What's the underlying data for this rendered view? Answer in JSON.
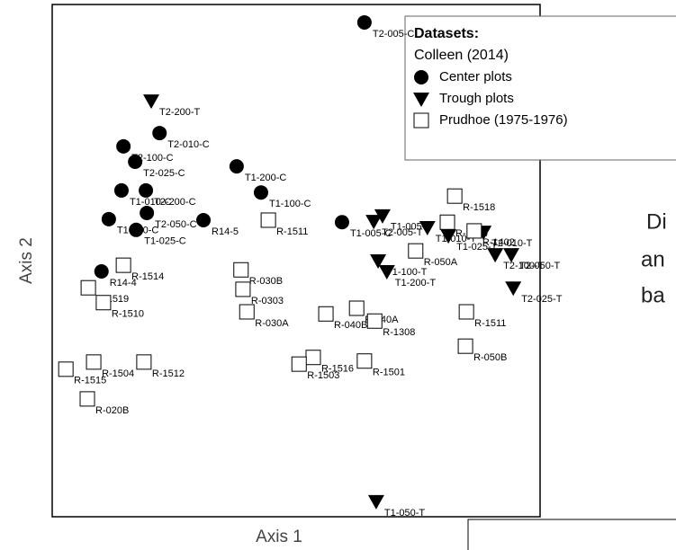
{
  "chart_data": {
    "type": "scatter",
    "x_label": "Axis 1",
    "y_label": "Axis 2",
    "xlim": [
      0,
      100
    ],
    "ylim": [
      0,
      100
    ],
    "legend_title": "Datasets:",
    "legend_subtitle": "Colleen (2014)",
    "legend_position": "upper right",
    "series": [
      {
        "name": "Center plots",
        "color": "#000000",
        "marker": "circle",
        "labels": [
          "T2-005-C",
          "T2-010-C",
          "T2-100-C",
          "T2-025-C",
          "T1-200-C",
          "T1-010-C",
          "T2-200-C",
          "T1-100-C",
          "T2-050-C",
          "T1-050-C",
          "T1-025-C",
          "R14-5",
          "T1-005-C",
          "R14-4"
        ],
        "x": [
          64.0,
          22.0,
          14.6,
          17.0,
          37.8,
          14.2,
          19.2,
          42.8,
          19.4,
          11.6,
          17.2,
          31.0,
          59.4,
          10.1
        ],
        "values": [
          96.5,
          74.9,
          72.3,
          69.3,
          68.4,
          63.7,
          63.7,
          63.3,
          59.3,
          58.1,
          56.0,
          57.9,
          57.5,
          47.9
        ]
      },
      {
        "name": "Trough plots",
        "color": "#000000",
        "marker": "triangle",
        "labels": [
          "T2-200-T",
          "T1-005-T",
          "T2-005-T",
          "T1-010-T",
          "T1-025-T",
          "T2-010-T",
          "T2-100-T",
          "T2-050-T",
          "T2-025-T",
          "T1-100-T",
          "T1-200-T",
          "T1-050-T"
        ],
        "x": [
          20.3,
          67.7,
          65.9,
          76.9,
          81.2,
          88.4,
          90.8,
          94.1,
          94.5,
          66.8,
          68.6,
          66.4
        ],
        "values": [
          81.2,
          58.8,
          57.7,
          56.5,
          54.9,
          55.6,
          51.2,
          51.2,
          44.7,
          50.0,
          47.9,
          3.0
        ]
      },
      {
        "name": "Prudhoe (1975-1976)",
        "color": "#ffffff",
        "marker": "square",
        "labels": [
          "R-1518",
          "R-1304",
          "R-1402",
          "R-1511",
          "R-050A",
          "R-030B",
          "R-1514",
          "R-0303",
          "R-030A",
          "R-1519",
          "R-1510",
          "R-040A",
          "R-040B",
          "R-1308",
          "R-1511",
          "R-050B",
          "R-1504",
          "R-1512",
          "R-1515",
          "R-020B",
          "R-1516",
          "R-1503",
          "R-1501"
        ],
        "x": [
          82.5,
          81.0,
          86.5,
          44.3,
          74.5,
          38.7,
          14.6,
          39.1,
          39.9,
          7.4,
          10.5,
          62.4,
          56.1,
          66.1,
          84.9,
          84.7,
          8.5,
          18.8,
          2.8,
          7.2,
          53.5,
          50.6,
          64.0
        ],
        "values": [
          62.6,
          57.5,
          55.8,
          57.9,
          51.9,
          48.2,
          49.1,
          44.4,
          40.0,
          44.7,
          41.8,
          40.7,
          39.6,
          38.2,
          40.0,
          33.3,
          30.2,
          30.2,
          28.8,
          23.0,
          31.1,
          29.8,
          30.4
        ]
      }
    ]
  },
  "slide_text": [
    "Di",
    "an",
    "ba"
  ]
}
